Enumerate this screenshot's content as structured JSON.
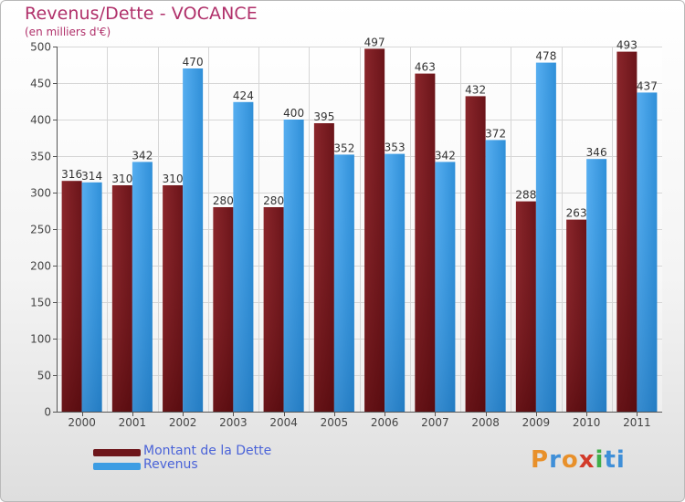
{
  "chart_data": {
    "type": "bar",
    "title": "Revenus/Dette - VOCANCE",
    "subtitle": "(en milliers d'€)",
    "xlabel": "",
    "ylabel": "",
    "ylim": [
      0,
      500
    ],
    "yticks": [
      0,
      50,
      100,
      150,
      200,
      250,
      300,
      350,
      400,
      450,
      500
    ],
    "grid": true,
    "categories": [
      "2000",
      "2001",
      "2002",
      "2003",
      "2004",
      "2005",
      "2006",
      "2007",
      "2008",
      "2009",
      "2010",
      "2011"
    ],
    "series": [
      {
        "name": "Montant de la Dette",
        "color": "#7b1d22",
        "values": [
          316,
          310,
          310,
          280,
          280,
          395,
          497,
          463,
          432,
          288,
          263,
          493
        ]
      },
      {
        "name": "Revenus",
        "color": "#3d9de3",
        "values": [
          314,
          342,
          470,
          424,
          400,
          352,
          353,
          342,
          372,
          478,
          346,
          437
        ]
      }
    ],
    "legend": "bottom-left"
  },
  "logo": {
    "parts": [
      "P",
      "r",
      "o",
      "x",
      "i",
      "ti"
    ]
  }
}
